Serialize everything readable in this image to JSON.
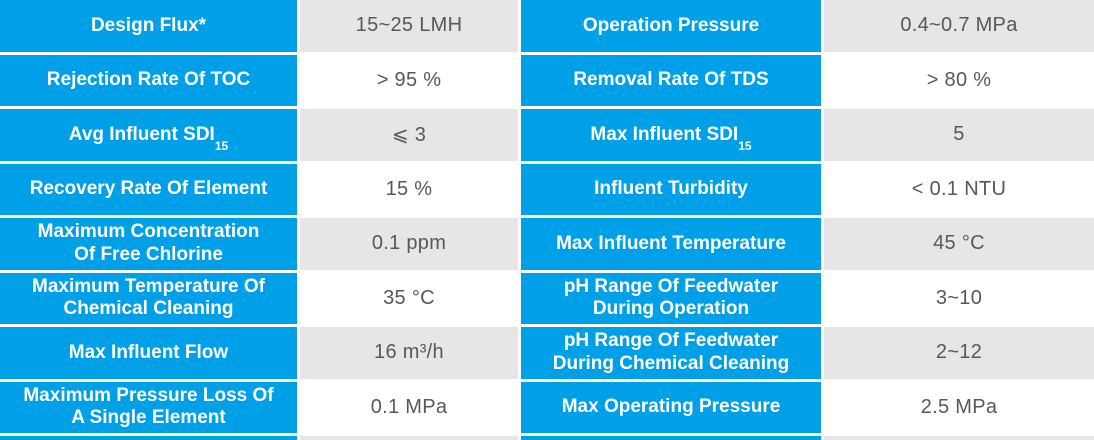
{
  "colors": {
    "accent": "#00A0E9",
    "shade": "#E6E6E6",
    "value_text": "#595757",
    "label_text": "#FFFFFF"
  },
  "table": {
    "rows": [
      {
        "left": {
          "label": "Design Flux*",
          "sub": "",
          "value": "15~25 LMH"
        },
        "right": {
          "label": "Operation Pressure",
          "sub": "",
          "value": "0.4~0.7 MPa"
        }
      },
      {
        "left": {
          "label": "Rejection Rate Of TOC",
          "sub": "",
          "value": "> 95 %"
        },
        "right": {
          "label": "Removal Rate Of TDS",
          "sub": "",
          "value": "> 80 %"
        }
      },
      {
        "left": {
          "label": "Avg Influent SDI",
          "sub": "15",
          "value": "⩽ 3"
        },
        "right": {
          "label": "Max Influent SDI",
          "sub": "15",
          "value": "5"
        }
      },
      {
        "left": {
          "label": "Recovery Rate Of Element",
          "sub": "",
          "value": "15 %"
        },
        "right": {
          "label": "Influent Turbidity",
          "sub": "",
          "value": "< 0.1 NTU"
        }
      },
      {
        "left": {
          "label": "Maximum Concentration\nOf Free Chlorine",
          "sub": "",
          "value": "0.1 ppm"
        },
        "right": {
          "label": "Max Influent Temperature",
          "sub": "",
          "value": "45 °C"
        }
      },
      {
        "left": {
          "label": "Maximum Temperature Of\nChemical Cleaning",
          "sub": "",
          "value": "35 °C"
        },
        "right": {
          "label": "pH Range Of Feedwater\nDuring Operation",
          "sub": "",
          "value": "3~10"
        }
      },
      {
        "left": {
          "label": "Max Influent Flow",
          "sub": "",
          "value": "16 m³/h"
        },
        "right": {
          "label": "pH Range Of Feedwater\nDuring Chemical Cleaning",
          "sub": "",
          "value": "2~12"
        }
      },
      {
        "left": {
          "label": "Maximum Pressure Loss Of\nA Single Element",
          "sub": "",
          "value": "0.1 MPa"
        },
        "right": {
          "label": "Max Operating Pressure",
          "sub": "",
          "value": "2.5 MPa"
        }
      }
    ]
  }
}
